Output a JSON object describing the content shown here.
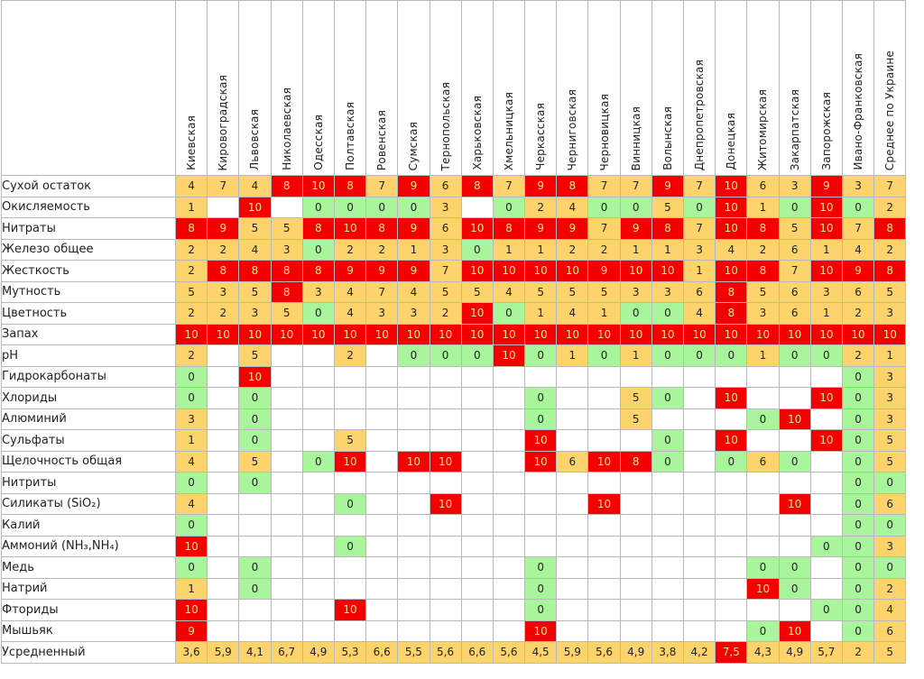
{
  "table": {
    "columns": [
      "Киевская",
      "Кировоградская",
      "Львовская",
      "Николаевская",
      "Одесская",
      "Полтавская",
      "Ровенская",
      "Сумская",
      "Тернопольская",
      "Харьковская",
      "Хмельницкая",
      "Черкасская",
      "Черниговская",
      "Черновицкая",
      "Винницкая",
      "Волынская",
      "Днепропетровская",
      "Донецкая",
      "Житомирская",
      "Закарпатская",
      "Запорожская",
      "Ивано-Франковская",
      "Среднее по Украине"
    ],
    "rows": [
      {
        "label": "Сухой остаток",
        "values": [
          "4",
          "7",
          "4",
          "8",
          "10",
          "8",
          "7",
          "9",
          "6",
          "8",
          "7",
          "9",
          "8",
          "7",
          "7",
          "9",
          "7",
          "10",
          "6",
          "3",
          "9",
          "3",
          "7"
        ],
        "colors": [
          "y",
          "y",
          "y",
          "r",
          "r",
          "r",
          "y",
          "r",
          "y",
          "r",
          "y",
          "r",
          "r",
          "y",
          "y",
          "r",
          "y",
          "r",
          "y",
          "y",
          "r",
          "y",
          "y"
        ]
      },
      {
        "label": "Окисляемость",
        "values": [
          "1",
          "",
          "10",
          "",
          "0",
          "0",
          "0",
          "0",
          "3",
          "",
          "0",
          "2",
          "4",
          "0",
          "0",
          "5",
          "0",
          "10",
          "1",
          "0",
          "10",
          "0",
          "2"
        ],
        "colors": [
          "y",
          "n",
          "r",
          "n",
          "g",
          "g",
          "g",
          "g",
          "y",
          "n",
          "g",
          "y",
          "y",
          "g",
          "g",
          "y",
          "g",
          "r",
          "y",
          "g",
          "r",
          "g",
          "y"
        ]
      },
      {
        "label": "Нитраты",
        "values": [
          "8",
          "9",
          "5",
          "5",
          "8",
          "10",
          "8",
          "9",
          "6",
          "10",
          "8",
          "9",
          "9",
          "7",
          "9",
          "8",
          "7",
          "10",
          "8",
          "5",
          "10",
          "7",
          "8"
        ],
        "colors": [
          "r",
          "r",
          "y",
          "y",
          "r",
          "r",
          "r",
          "r",
          "y",
          "r",
          "r",
          "r",
          "r",
          "y",
          "r",
          "r",
          "y",
          "r",
          "r",
          "y",
          "r",
          "y",
          "r"
        ]
      },
      {
        "label": "Железо общее",
        "values": [
          "2",
          "2",
          "4",
          "3",
          "0",
          "2",
          "2",
          "1",
          "3",
          "0",
          "1",
          "1",
          "2",
          "2",
          "1",
          "1",
          "3",
          "4",
          "2",
          "6",
          "1",
          "4",
          "2"
        ],
        "colors": [
          "y",
          "y",
          "y",
          "y",
          "g",
          "y",
          "y",
          "y",
          "y",
          "g",
          "y",
          "y",
          "y",
          "y",
          "y",
          "y",
          "y",
          "y",
          "y",
          "y",
          "y",
          "y",
          "y"
        ]
      },
      {
        "label": "Жесткость",
        "values": [
          "2",
          "8",
          "8",
          "8",
          "8",
          "9",
          "9",
          "9",
          "7",
          "10",
          "10",
          "10",
          "10",
          "9",
          "10",
          "10",
          "1",
          "10",
          "8",
          "7",
          "10",
          "9",
          "8"
        ],
        "colors": [
          "y",
          "r",
          "r",
          "r",
          "r",
          "r",
          "r",
          "r",
          "y",
          "r",
          "r",
          "r",
          "r",
          "r",
          "r",
          "r",
          "y",
          "r",
          "r",
          "y",
          "r",
          "r",
          "r"
        ]
      },
      {
        "label": "Мутность",
        "values": [
          "5",
          "3",
          "5",
          "8",
          "3",
          "4",
          "7",
          "4",
          "5",
          "5",
          "4",
          "5",
          "5",
          "5",
          "3",
          "3",
          "6",
          "8",
          "5",
          "6",
          "3",
          "6",
          "5"
        ],
        "colors": [
          "y",
          "y",
          "y",
          "r",
          "y",
          "y",
          "y",
          "y",
          "y",
          "y",
          "y",
          "y",
          "y",
          "y",
          "y",
          "y",
          "y",
          "r",
          "y",
          "y",
          "y",
          "y",
          "y"
        ]
      },
      {
        "label": "Цветность",
        "values": [
          "2",
          "2",
          "3",
          "5",
          "0",
          "4",
          "3",
          "3",
          "2",
          "10",
          "0",
          "1",
          "4",
          "1",
          "0",
          "0",
          "4",
          "8",
          "3",
          "6",
          "1",
          "2",
          "3"
        ],
        "colors": [
          "y",
          "y",
          "y",
          "y",
          "g",
          "y",
          "y",
          "y",
          "y",
          "r",
          "g",
          "y",
          "y",
          "y",
          "g",
          "g",
          "y",
          "r",
          "y",
          "y",
          "y",
          "y",
          "y"
        ]
      },
      {
        "label": "Запах",
        "values": [
          "10",
          "10",
          "10",
          "10",
          "10",
          "10",
          "10",
          "10",
          "10",
          "10",
          "10",
          "10",
          "10",
          "10",
          "10",
          "10",
          "10",
          "10",
          "10",
          "10",
          "10",
          "10",
          "10"
        ],
        "colors": [
          "r",
          "r",
          "r",
          "r",
          "r",
          "r",
          "r",
          "r",
          "r",
          "r",
          "r",
          "r",
          "r",
          "r",
          "r",
          "r",
          "r",
          "r",
          "r",
          "r",
          "r",
          "r",
          "r"
        ]
      },
      {
        "label": "pH",
        "values": [
          "2",
          "",
          "5",
          "",
          "",
          "2",
          "",
          "0",
          "0",
          "0",
          "10",
          "0",
          "1",
          "0",
          "1",
          "0",
          "0",
          "0",
          "1",
          "0",
          "0",
          "2",
          "1"
        ],
        "colors": [
          "y",
          "n",
          "y",
          "n",
          "n",
          "y",
          "n",
          "g",
          "g",
          "g",
          "r",
          "g",
          "y",
          "g",
          "y",
          "g",
          "g",
          "g",
          "y",
          "g",
          "g",
          "y",
          "y"
        ]
      },
      {
        "label": "Гидрокарбонаты",
        "values": [
          "0",
          "",
          "10",
          "",
          "",
          "",
          "",
          "",
          "",
          "",
          "",
          "",
          "",
          "",
          "",
          "",
          "",
          "",
          "",
          "",
          "",
          "0",
          "3"
        ],
        "colors": [
          "g",
          "n",
          "r",
          "n",
          "n",
          "n",
          "n",
          "n",
          "n",
          "n",
          "n",
          "n",
          "n",
          "n",
          "n",
          "n",
          "n",
          "n",
          "n",
          "n",
          "n",
          "g",
          "y"
        ]
      },
      {
        "label": "Хлориды",
        "values": [
          "0",
          "",
          "0",
          "",
          "",
          "",
          "",
          "",
          "",
          "",
          "",
          "0",
          "",
          "",
          "5",
          "0",
          "",
          "10",
          "",
          "",
          "10",
          "0",
          "3"
        ],
        "colors": [
          "g",
          "n",
          "g",
          "n",
          "n",
          "n",
          "n",
          "n",
          "n",
          "n",
          "n",
          "g",
          "n",
          "n",
          "y",
          "g",
          "n",
          "r",
          "n",
          "n",
          "r",
          "g",
          "y"
        ]
      },
      {
        "label": "Алюминий",
        "values": [
          "3",
          "",
          "0",
          "",
          "",
          "",
          "",
          "",
          "",
          "",
          "",
          "0",
          "",
          "",
          "5",
          "",
          "",
          "",
          "0",
          "10",
          "",
          "0",
          "3"
        ],
        "colors": [
          "y",
          "n",
          "g",
          "n",
          "n",
          "n",
          "n",
          "n",
          "n",
          "n",
          "n",
          "g",
          "n",
          "n",
          "y",
          "n",
          "n",
          "n",
          "g",
          "r",
          "n",
          "g",
          "y"
        ]
      },
      {
        "label": "Сульфаты",
        "values": [
          "1",
          "",
          "0",
          "",
          "",
          "5",
          "",
          "",
          "",
          "",
          "",
          "10",
          "",
          "",
          "",
          "0",
          "",
          "10",
          "",
          "",
          "10",
          "0",
          "5"
        ],
        "colors": [
          "y",
          "n",
          "g",
          "n",
          "n",
          "y",
          "n",
          "n",
          "n",
          "n",
          "n",
          "r",
          "n",
          "n",
          "n",
          "g",
          "n",
          "r",
          "n",
          "n",
          "r",
          "g",
          "y"
        ]
      },
      {
        "label": "Щелочность общая",
        "values": [
          "4",
          "",
          "5",
          "",
          "0",
          "10",
          "",
          "10",
          "10",
          "",
          "",
          "10",
          "6",
          "10",
          "8",
          "0",
          "",
          "0",
          "6",
          "0",
          "",
          "0",
          "5"
        ],
        "colors": [
          "y",
          "n",
          "y",
          "n",
          "g",
          "r",
          "n",
          "r",
          "r",
          "n",
          "n",
          "r",
          "y",
          "r",
          "r",
          "g",
          "n",
          "g",
          "y",
          "g",
          "n",
          "g",
          "y"
        ]
      },
      {
        "label": "Нитриты",
        "values": [
          "0",
          "",
          "0",
          "",
          "",
          "",
          "",
          "",
          "",
          "",
          "",
          "",
          "",
          "",
          "",
          "",
          "",
          "",
          "",
          "",
          "",
          "0",
          "0"
        ],
        "colors": [
          "g",
          "n",
          "g",
          "n",
          "n",
          "n",
          "n",
          "n",
          "n",
          "n",
          "n",
          "n",
          "n",
          "n",
          "n",
          "n",
          "n",
          "n",
          "n",
          "n",
          "n",
          "g",
          "g"
        ]
      },
      {
        "label": "Силикаты (SiO₂)",
        "values": [
          "4",
          "",
          "",
          "",
          "",
          "0",
          "",
          "",
          "10",
          "",
          "",
          "",
          "",
          "10",
          "",
          "",
          "",
          "",
          "",
          "10",
          "",
          "0",
          "6"
        ],
        "colors": [
          "y",
          "n",
          "n",
          "n",
          "n",
          "g",
          "n",
          "n",
          "r",
          "n",
          "n",
          "n",
          "n",
          "r",
          "n",
          "n",
          "n",
          "n",
          "n",
          "r",
          "n",
          "g",
          "y"
        ]
      },
      {
        "label": "Калий",
        "values": [
          "0",
          "",
          "",
          "",
          "",
          "",
          "",
          "",
          "",
          "",
          "",
          "",
          "",
          "",
          "",
          "",
          "",
          "",
          "",
          "",
          "",
          "0",
          "0"
        ],
        "colors": [
          "g",
          "n",
          "n",
          "n",
          "n",
          "n",
          "n",
          "n",
          "n",
          "n",
          "n",
          "n",
          "n",
          "n",
          "n",
          "n",
          "n",
          "n",
          "n",
          "n",
          "n",
          "g",
          "g"
        ]
      },
      {
        "label": "Аммоний (NH₃,NH₄)",
        "values": [
          "10",
          "",
          "",
          "",
          "",
          "0",
          "",
          "",
          "",
          "",
          "",
          "",
          "",
          "",
          "",
          "",
          "",
          "",
          "",
          "",
          "0",
          "0",
          "3"
        ],
        "colors": [
          "r",
          "n",
          "n",
          "n",
          "n",
          "g",
          "n",
          "n",
          "n",
          "n",
          "n",
          "n",
          "n",
          "n",
          "n",
          "n",
          "n",
          "n",
          "n",
          "n",
          "g",
          "g",
          "y"
        ]
      },
      {
        "label": "Медь",
        "values": [
          "0",
          "",
          "0",
          "",
          "",
          "",
          "",
          "",
          "",
          "",
          "",
          "0",
          "",
          "",
          "",
          "",
          "",
          "",
          "0",
          "0",
          "",
          "0",
          "0"
        ],
        "colors": [
          "g",
          "n",
          "g",
          "n",
          "n",
          "n",
          "n",
          "n",
          "n",
          "n",
          "n",
          "g",
          "n",
          "n",
          "n",
          "n",
          "n",
          "n",
          "g",
          "g",
          "n",
          "g",
          "g"
        ]
      },
      {
        "label": "Натрий",
        "values": [
          "1",
          "",
          "0",
          "",
          "",
          "",
          "",
          "",
          "",
          "",
          "",
          "0",
          "",
          "",
          "",
          "",
          "",
          "",
          "10",
          "0",
          "",
          "0",
          "2"
        ],
        "colors": [
          "y",
          "n",
          "g",
          "n",
          "n",
          "n",
          "n",
          "n",
          "n",
          "n",
          "n",
          "g",
          "n",
          "n",
          "n",
          "n",
          "n",
          "n",
          "r",
          "g",
          "n",
          "g",
          "y"
        ]
      },
      {
        "label": "Фториды",
        "values": [
          "10",
          "",
          "",
          "",
          "",
          "10",
          "",
          "",
          "",
          "",
          "",
          "0",
          "",
          "",
          "",
          "",
          "",
          "",
          "",
          "",
          "0",
          "0",
          "4"
        ],
        "colors": [
          "r",
          "n",
          "n",
          "n",
          "n",
          "r",
          "n",
          "n",
          "n",
          "n",
          "n",
          "g",
          "n",
          "n",
          "n",
          "n",
          "n",
          "n",
          "n",
          "n",
          "g",
          "g",
          "y"
        ]
      },
      {
        "label": "Мышьяк",
        "values": [
          "9",
          "",
          "",
          "",
          "",
          "",
          "",
          "",
          "",
          "",
          "",
          "10",
          "",
          "",
          "",
          "",
          "",
          "",
          "0",
          "10",
          "",
          "0",
          "6"
        ],
        "colors": [
          "r",
          "n",
          "n",
          "n",
          "n",
          "n",
          "n",
          "n",
          "n",
          "n",
          "n",
          "r",
          "n",
          "n",
          "n",
          "n",
          "n",
          "n",
          "g",
          "r",
          "n",
          "g",
          "y"
        ]
      },
      {
        "label": "Усредненный",
        "values": [
          "3,6",
          "5,9",
          "4,1",
          "6,7",
          "4,9",
          "5,3",
          "6,6",
          "5,5",
          "5,6",
          "6,6",
          "5,6",
          "4,5",
          "5,9",
          "5,6",
          "4,9",
          "3,8",
          "4,2",
          "7,5",
          "4,3",
          "4,9",
          "5,7",
          "2",
          "5"
        ],
        "colors": [
          "y",
          "y",
          "y",
          "y",
          "y",
          "y",
          "y",
          "y",
          "y",
          "y",
          "y",
          "y",
          "y",
          "y",
          "y",
          "y",
          "y",
          "r",
          "y",
          "y",
          "y",
          "y",
          "y"
        ]
      }
    ]
  },
  "legend_colors": {
    "y": "#fcd46b",
    "g": "#a9f59c",
    "r": "#f40000",
    "n": "#ffffff"
  }
}
